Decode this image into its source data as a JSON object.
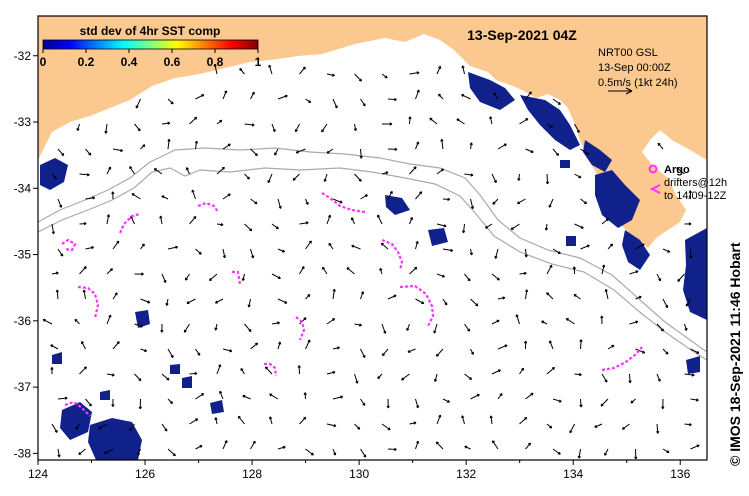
{
  "map": {
    "date_title": "13-Sep-2021 04Z",
    "colorbar": {
      "title": "std dev of 4hr SST comp",
      "ticks": [
        "0",
        "0.2",
        "0.4",
        "0.6",
        "0.8",
        "1"
      ],
      "range": [
        0,
        1
      ],
      "colormap": "jet"
    },
    "current_legend": {
      "line1": "NRT00 GSL",
      "line2": "13-Sep 00:00Z",
      "line3": "0.5m/s (1kt 24h)"
    },
    "argo_legend": {
      "title": "Argo",
      "line1": "drifters@12h",
      "line2": "to 14/09-12Z"
    },
    "credit": "© IMOS 18-Sep-2021 11:46 Hobart",
    "x_ticks": [
      "124",
      "126",
      "128",
      "130",
      "132",
      "134",
      "136"
    ],
    "y_ticks": [
      "-32",
      "-33",
      "-34",
      "-35",
      "-36",
      "-37",
      "-38"
    ],
    "lon_range": [
      124,
      136.5
    ],
    "lat_range": [
      -38.1,
      -31.4
    ],
    "colors": {
      "land": "#fbc88f",
      "high_stddev": "#10218c",
      "drifters": "#ff33ff",
      "shelf_contour": "#aaaaaa",
      "arrows": "#000000"
    }
  }
}
